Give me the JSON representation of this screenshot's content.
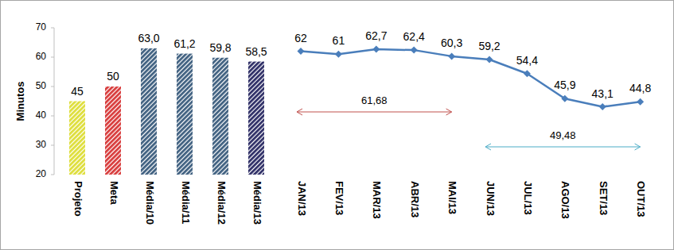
{
  "chart_data": {
    "type": "bar",
    "y_label": "Minutos",
    "categories": [
      "Projeto",
      "Meta",
      "Média/10",
      "Média/11",
      "Média/12",
      "Média/13",
      "JAN/13",
      "FEV/13",
      "MAR/13",
      "ABR/13",
      "MAI/13",
      "JUN/13",
      "JUL/13",
      "AGO/13",
      "SET/13",
      "OUT/13"
    ],
    "ylim": [
      20,
      70
    ],
    "yticks": [
      20,
      30,
      40,
      50,
      60,
      70
    ],
    "grid": false,
    "data_labels": true,
    "series": [
      {
        "type": "bar",
        "colors": [
          "#dede3a",
          "#d83b3b",
          "#3f6080",
          "#3f6080",
          "#3f6080",
          "#2e2e66",
          null,
          null,
          null,
          null,
          null,
          null,
          null,
          null,
          null,
          null
        ],
        "values": [
          45,
          50,
          63.0,
          61.2,
          59.8,
          58.5,
          null,
          null,
          null,
          null,
          null,
          null,
          null,
          null,
          null,
          null
        ],
        "value_labels": [
          "45",
          "50",
          "63,0",
          "61,2",
          "59,8",
          "58,5",
          null,
          null,
          null,
          null,
          null,
          null,
          null,
          null,
          null,
          null
        ]
      },
      {
        "type": "line",
        "color": "#4a7ebb",
        "marker": "diamond",
        "values": [
          null,
          null,
          null,
          null,
          null,
          null,
          62,
          61,
          62.7,
          62.4,
          60.3,
          59.2,
          54.4,
          45.9,
          43.1,
          44.8
        ],
        "value_labels": [
          null,
          null,
          null,
          null,
          null,
          null,
          "62",
          "61",
          "62,7",
          "62,4",
          "60,3",
          "59,2",
          "54,4",
          "45,9",
          "43,1",
          "44,8"
        ]
      }
    ],
    "annotations": [
      {
        "text": "61,68",
        "from": "JAN/13",
        "to": "MAI/13",
        "color": "#c0504d"
      },
      {
        "text": "49,48",
        "from": "JUN/13",
        "to": "OUT/13",
        "color": "#4bacc6"
      }
    ]
  }
}
